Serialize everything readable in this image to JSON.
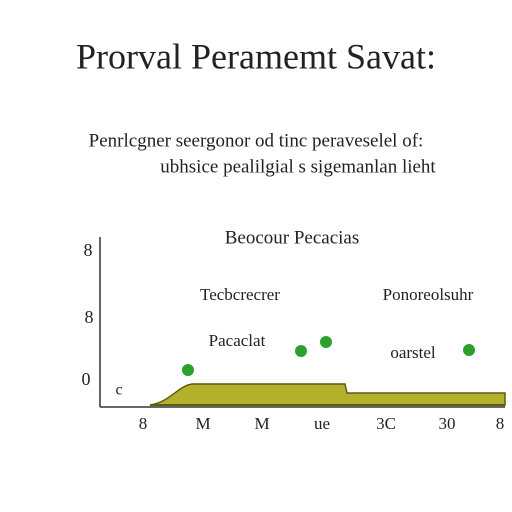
{
  "header": {
    "title": "Prorval Peramemt Savat:",
    "subtitle_lines": [
      "Penrlcgner seergonor od tinc peraveselel of:",
      "ubhsice pealilgial s sigemanlan lieht"
    ]
  },
  "figure": {
    "title": "Beocour Pecacias",
    "annotations": [
      "Tecbcrecrer",
      "Ponoreolsuhr",
      "Pacaclat",
      "oarstel"
    ],
    "y_labels": [
      "8",
      "8",
      "0"
    ],
    "corner_label": "c",
    "x_labels": [
      "8",
      "M",
      "M",
      "ue",
      "3C",
      "30",
      "8"
    ]
  }
}
